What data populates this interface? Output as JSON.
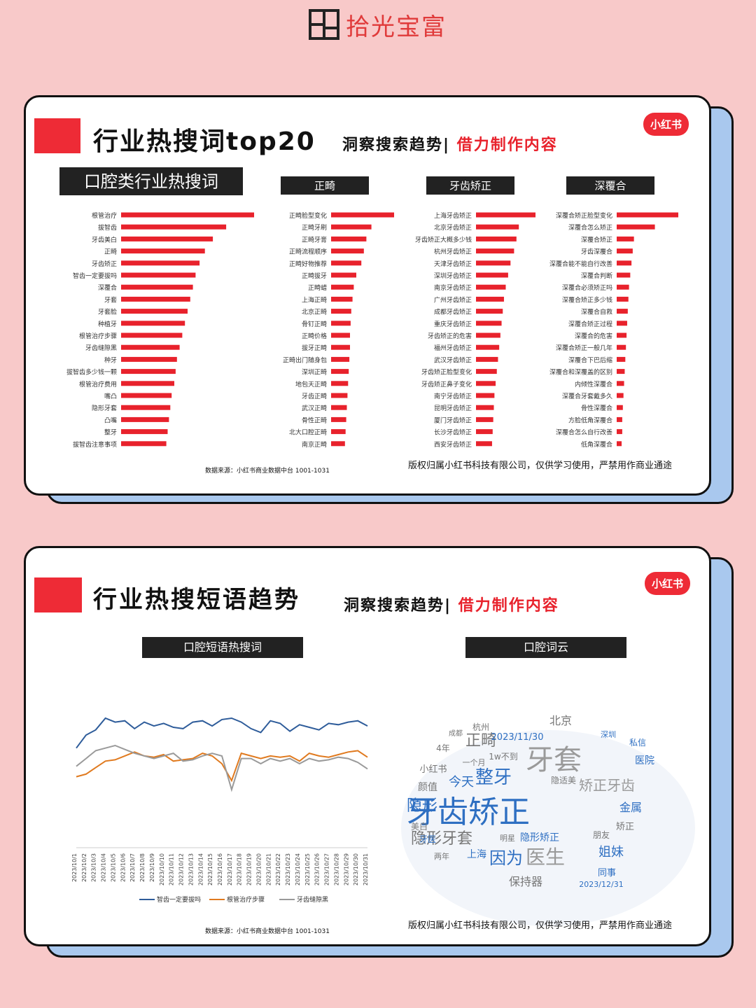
{
  "logo": {
    "text": "拾光宝富"
  },
  "card1": {
    "title": "行业热搜词top20",
    "subtitle_a": "洞察搜索趋势|",
    "subtitle_b": "借力制作内容",
    "badge": "小红书",
    "source": "数据来源：小红书商业数据中台 1001-1031",
    "footer": "版权归属小红书科技有限公司，仅供学习使用，严禁用作商业通途"
  },
  "card2": {
    "title": "行业热搜短语趋势",
    "subtitle_a": "洞察搜索趋势|",
    "subtitle_b": "借力制作内容",
    "badge": "小红书",
    "source": "数据来源：小红书商业数据中台 1001-1031",
    "footer": "版权归属小红书科技有限公司，仅供学习使用，严禁用作商业通途",
    "line_chart_label": "口腔短语热搜词",
    "wordcloud_label": "口腔词云"
  },
  "colors": {
    "red": "#e8222c",
    "blue": "#2e5c9a",
    "orange": "#e07a1f",
    "gray": "#9a9a9a"
  },
  "chart_data": [
    {
      "type": "bar",
      "title": "口腔类行业热搜词",
      "categories": [
        "根管治疗",
        "拔智齿",
        "牙齿美白",
        "正畸",
        "牙齿矫正",
        "智齿一定要拔吗",
        "深覆合",
        "牙套",
        "牙套脸",
        "种植牙",
        "根管治疗步骤",
        "牙齿缝隙黑",
        "种牙",
        "拔智齿多少钱一颗",
        "根管治疗费用",
        "嘴凸",
        "隐形牙套",
        "凸嘴",
        "整牙",
        "拔智齿注意事项"
      ],
      "values": [
        100,
        79,
        69,
        63,
        59,
        56,
        54,
        52,
        50,
        48,
        46,
        44,
        42,
        41,
        40,
        38,
        37,
        36,
        35,
        34
      ]
    },
    {
      "type": "bar",
      "title": "正畸",
      "categories": [
        "正畸脸型变化",
        "正畸牙刷",
        "正畸牙膏",
        "正畸流程顺序",
        "正畸好物推荐",
        "正畸拔牙",
        "正畸蜡",
        "上海正畸",
        "北京正畸",
        "骨钉正畸",
        "正畸价格",
        "拔牙正畸",
        "正畸出门随身包",
        "深圳正畸",
        "地包天正畸",
        "牙齿正畸",
        "武汉正畸",
        "骨性正畸",
        "北大口腔正畸",
        "南京正畸"
      ],
      "values": [
        100,
        64,
        56,
        52,
        48,
        40,
        36,
        34,
        32,
        31,
        30,
        30,
        29,
        28,
        27,
        26,
        25,
        24,
        23,
        22
      ]
    },
    {
      "type": "bar",
      "title": "牙齿矫正",
      "categories": [
        "上海牙齿矫正",
        "北京牙齿矫正",
        "牙齿矫正大概多少钱",
        "杭州牙齿矫正",
        "天津牙齿矫正",
        "深圳牙齿矫正",
        "南京牙齿矫正",
        "广州牙齿矫正",
        "成都牙齿矫正",
        "重庆牙齿矫正",
        "牙齿矫正的危害",
        "福州牙齿矫正",
        "武汉牙齿矫正",
        "牙齿矫正脸型变化",
        "牙齿矫正鼻子变化",
        "南宁牙齿矫正",
        "昆明牙齿矫正",
        "厦门牙齿矫正",
        "长沙牙齿矫正",
        "西安牙齿矫正"
      ],
      "values": [
        100,
        72,
        68,
        64,
        58,
        54,
        50,
        47,
        45,
        43,
        41,
        39,
        37,
        35,
        33,
        31,
        30,
        29,
        28,
        27
      ]
    },
    {
      "type": "bar",
      "title": "深覆合",
      "categories": [
        "深覆合矫正脸型变化",
        "深覆合怎么矫正",
        "深覆合矫正",
        "牙齿深覆合",
        "深覆合能不能自行改善",
        "深覆合判断",
        "深覆合必须矫正吗",
        "深覆合矫正多少钱",
        "深覆合自救",
        "深覆合矫正过程",
        "深覆合的危害",
        "深覆合矫正一般几年",
        "深覆合下巴后缩",
        "深覆合和深覆盖的区别",
        "内倾性深覆合",
        "深覆合牙套戴多久",
        "骨性深覆合",
        "方脸低角深覆合",
        "深覆合怎么自行改善",
        "低角深覆合"
      ],
      "values": [
        100,
        62,
        28,
        26,
        24,
        22,
        20,
        19,
        18,
        17,
        16,
        15,
        14,
        13,
        12,
        11,
        10,
        9,
        9,
        8
      ]
    },
    {
      "type": "line",
      "title": "口腔短语热搜词",
      "x": [
        "2023/10/1",
        "2023/10/2",
        "2023/10/3",
        "2023/10/4",
        "2023/10/5",
        "2023/10/6",
        "2023/10/7",
        "2023/10/8",
        "2023/10/9",
        "2023/10/10",
        "2023/10/11",
        "2023/10/12",
        "2023/10/13",
        "2023/10/14",
        "2023/10/15",
        "2023/10/16",
        "2023/10/17",
        "2023/10/18",
        "2023/10/19",
        "2023/10/20",
        "2023/10/21",
        "2023/10/22",
        "2023/10/23",
        "2023/10/24",
        "2023/10/25",
        "2023/10/26",
        "2023/10/27",
        "2023/10/28",
        "2023/10/29",
        "2023/10/30",
        "2023/10/31"
      ],
      "series": [
        {
          "name": "智齿一定要拔吗",
          "color": "#2e5c9a",
          "values": [
            70,
            80,
            84,
            93,
            90,
            91,
            85,
            90,
            87,
            89,
            86,
            85,
            90,
            91,
            87,
            92,
            93,
            90,
            85,
            82,
            91,
            89,
            83,
            88,
            86,
            84,
            89,
            88,
            90,
            91,
            87
          ]
        },
        {
          "name": "根管治疗步骤",
          "color": "#e07a1f",
          "values": [
            48,
            50,
            55,
            60,
            61,
            64,
            67,
            64,
            63,
            65,
            60,
            61,
            62,
            66,
            64,
            58,
            45,
            66,
            64,
            62,
            64,
            63,
            64,
            60,
            66,
            64,
            63,
            65,
            67,
            68,
            63
          ]
        },
        {
          "name": "牙齿缝隙黑",
          "color": "#9a9a9a",
          "values": [
            56,
            62,
            68,
            70,
            72,
            69,
            66,
            64,
            62,
            64,
            66,
            60,
            61,
            64,
            66,
            64,
            38,
            62,
            62,
            58,
            62,
            60,
            62,
            58,
            62,
            60,
            61,
            63,
            62,
            59,
            54
          ]
        }
      ],
      "legend": "bottom"
    }
  ],
  "wordcloud": [
    {
      "t": "牙齿矫正",
      "s": 44,
      "c": "#2e6fc2"
    },
    {
      "t": "牙套",
      "s": 40,
      "c": "#9a9a9a"
    },
    {
      "t": "正畸",
      "s": 22,
      "c": "#777"
    },
    {
      "t": "隐形牙套",
      "s": 22,
      "c": "#777"
    },
    {
      "t": "因为",
      "s": 24,
      "c": "#2e6fc2"
    },
    {
      "t": "医生",
      "s": 28,
      "c": "#9a9a9a"
    },
    {
      "t": "整牙",
      "s": 26,
      "c": "#2e6fc2"
    },
    {
      "t": "隐形",
      "s": 22,
      "c": "#2e6fc2"
    },
    {
      "t": "矫正牙齿",
      "s": 20,
      "c": "#9a9a9a"
    },
    {
      "t": "北京",
      "s": 16,
      "c": "#777"
    },
    {
      "t": "2023/11/30",
      "s": 13,
      "c": "#2e6fc2"
    },
    {
      "t": "今天",
      "s": 18,
      "c": "#2e6fc2"
    },
    {
      "t": "金属",
      "s": 16,
      "c": "#2e6fc2"
    },
    {
      "t": "姐妹",
      "s": 18,
      "c": "#2e6fc2"
    },
    {
      "t": "保持器",
      "s": 16,
      "c": "#777"
    },
    {
      "t": "上海",
      "s": 14,
      "c": "#2e6fc2"
    },
    {
      "t": "隐形矫正",
      "s": 14,
      "c": "#2e6fc2"
    },
    {
      "t": "医院",
      "s": 14,
      "c": "#2e6fc2"
    },
    {
      "t": "同事",
      "s": 13,
      "c": "#2e6fc2"
    },
    {
      "t": "2023/12/31",
      "s": 11,
      "c": "#2e6fc2"
    },
    {
      "t": "私信",
      "s": 12,
      "c": "#2e6fc2"
    },
    {
      "t": "深圳",
      "s": 11,
      "c": "#2e6fc2"
    },
    {
      "t": "朋友",
      "s": 12,
      "c": "#777"
    },
    {
      "t": "小红书",
      "s": 13,
      "c": "#777"
    },
    {
      "t": "颜值",
      "s": 14,
      "c": "#777"
    },
    {
      "t": "美白",
      "s": 12,
      "c": "#777"
    },
    {
      "t": "杭州",
      "s": 12,
      "c": "#777"
    },
    {
      "t": "1w不到",
      "s": 12,
      "c": "#777"
    },
    {
      "t": "4年",
      "s": 12,
      "c": "#777"
    },
    {
      "t": "矫正",
      "s": 13,
      "c": "#777"
    },
    {
      "t": "牙医",
      "s": 12,
      "c": "#2e6fc2"
    },
    {
      "t": "明星",
      "s": 11,
      "c": "#777"
    },
    {
      "t": "两年",
      "s": 11,
      "c": "#777"
    },
    {
      "t": "一个月",
      "s": 11,
      "c": "#777"
    },
    {
      "t": "成都",
      "s": 10,
      "c": "#777"
    },
    {
      "t": "隐适美",
      "s": 12,
      "c": "#777"
    }
  ]
}
